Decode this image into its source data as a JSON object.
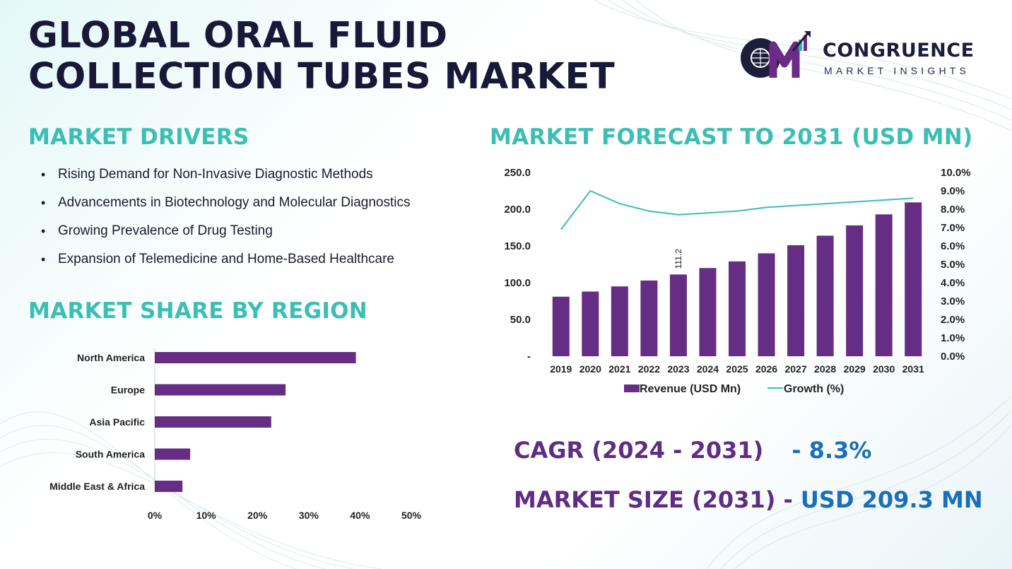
{
  "title": {
    "line1": "GLOBAL ORAL FLUID",
    "line2": "COLLECTION TUBES MARKET"
  },
  "logo": {
    "name": "CONGRUENCE",
    "subtitle": "MARKET INSIGHTS",
    "colors": [
      "#6a2c86",
      "#1e1e3c",
      "#27b3b0"
    ]
  },
  "drivers": {
    "heading": "MARKET DRIVERS",
    "items": [
      "Rising Demand for Non-Invasive Diagnostic Methods",
      "Advancements in Biotechnology and Molecular Diagnostics",
      "Growing Prevalence of Drug Testing",
      "Expansion of Telemedicine and Home-Based Healthcare"
    ]
  },
  "forecast": {
    "heading": "MARKET FORECAST TO 2031 (USD MN)"
  },
  "region": {
    "heading": "MARKET SHARE BY REGION"
  },
  "summary": {
    "cagr_label": "CAGR (2024 - 2031)",
    "cagr_value": "- 8.3%",
    "size_label": "MARKET SIZE (2031)",
    "size_sep": " - ",
    "size_value": "USD 209.3 MN"
  },
  "colors": {
    "bar": "#652e84",
    "line": "#3bbfb4",
    "accent": "#3bbfb4",
    "value": "#1a6fb8"
  },
  "chart_data": [
    {
      "type": "bar",
      "subtype": "combo-bar-line",
      "categories": [
        "2019",
        "2020",
        "2021",
        "2022",
        "2023",
        "2024",
        "2025",
        "2026",
        "2027",
        "2028",
        "2029",
        "2030",
        "2031"
      ],
      "series": [
        {
          "name": "Revenue (USD Mn)",
          "kind": "bar",
          "axis": "left",
          "values": [
            81,
            88,
            95,
            103,
            111.2,
            120,
            129,
            140,
            151,
            164,
            178,
            193,
            209.3
          ]
        },
        {
          "name": "Growth (%)",
          "kind": "line",
          "axis": "right",
          "values": [
            6.9,
            9.0,
            8.3,
            7.9,
            7.7,
            7.8,
            7.9,
            8.1,
            8.2,
            8.3,
            8.4,
            8.5,
            8.6
          ]
        }
      ],
      "data_labels": [
        {
          "category": "2023",
          "text": "111.2"
        }
      ],
      "ylim": [
        0,
        250
      ],
      "yticks": [
        "-",
        "50.0",
        "100.0",
        "150.0",
        "200.0",
        "250.0"
      ],
      "y2lim": [
        0,
        10
      ],
      "y2ticks": [
        "0.0%",
        "1.0%",
        "2.0%",
        "3.0%",
        "4.0%",
        "5.0%",
        "6.0%",
        "7.0%",
        "8.0%",
        "9.0%",
        "10.0%"
      ],
      "legend": "bottom",
      "grid": false
    },
    {
      "type": "bar",
      "orientation": "horizontal",
      "categories": [
        "North America",
        "Europe",
        "Asia Pacific",
        "South America",
        "Middle East & Africa"
      ],
      "values": [
        39.2,
        25.5,
        22.7,
        6.9,
        5.4
      ],
      "xlim": [
        0,
        50
      ],
      "xticks": [
        "0%",
        "10%",
        "20%",
        "30%",
        "40%",
        "50%"
      ],
      "grid": false
    }
  ]
}
